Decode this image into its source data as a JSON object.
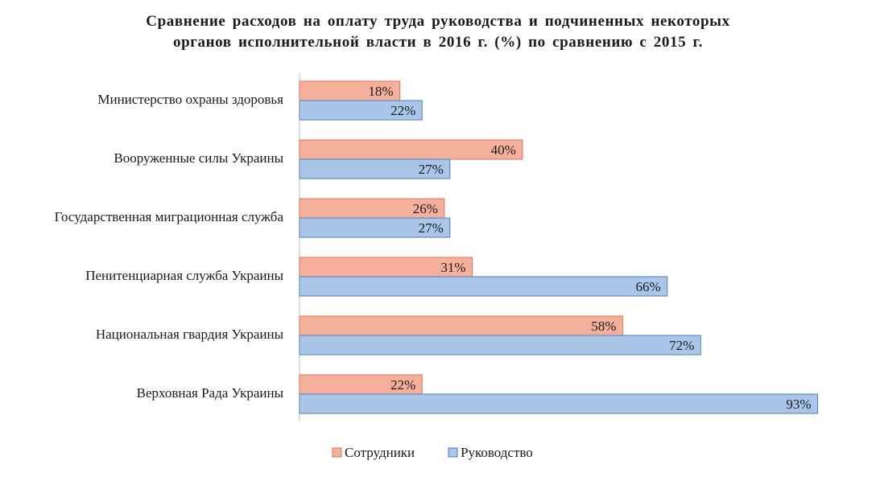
{
  "chart_data": {
    "type": "bar",
    "orientation": "horizontal",
    "title": "Сравнение расходов на оплату труда руководства и подчиненных некоторых органов исполнительной власти в 2016 г. (%) по сравнению с 2015 г.",
    "title_lines": [
      "Сравнение расходов на оплату труда руководства и подчиненных некоторых",
      "органов исполнительной власти в 2016 г. (%) по сравнению с 2015 г."
    ],
    "categories": [
      "Министерство охраны здоровья",
      "Вооруженные силы Украины",
      "Государственная миграционная служба",
      "Пенитенциарная служба Украины",
      "Национальная гвардия Украины",
      "Верховная Рада Украины"
    ],
    "series": [
      {
        "name": "Сотрудники",
        "color": "#f4b09a",
        "stroke": "#e8714a",
        "values": [
          18,
          40,
          26,
          31,
          58,
          22
        ]
      },
      {
        "name": "Руководство",
        "color": "#a9c6e8",
        "stroke": "#4f7fbf",
        "values": [
          22,
          27,
          27,
          66,
          72,
          93
        ]
      }
    ],
    "value_suffix": "%",
    "xlim": [
      0,
      100
    ],
    "xlabel": "",
    "ylabel": "",
    "grid": false,
    "legend_position": "bottom"
  }
}
